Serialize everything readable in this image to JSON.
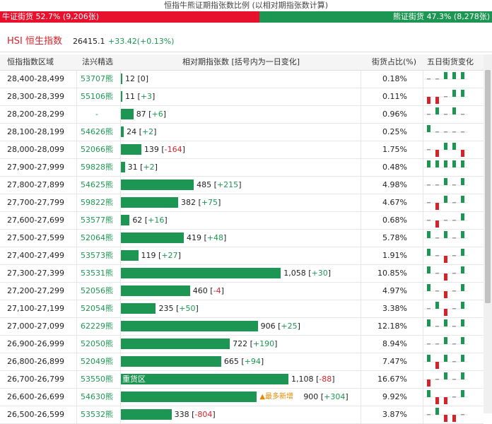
{
  "title": "恒指牛熊证期指张数比例 (以相对期指张数计算)",
  "ratio": {
    "bull_label": "牛证街货 52.7% (9,206张)",
    "bear_label": "熊证街货 47.3% (8,278张)",
    "bull_frac": 0.527,
    "bull_color": "#e8112d",
    "bear_color": "#1e9653"
  },
  "index": {
    "code": "HSI",
    "name": "恒生指数",
    "price": "26415.1",
    "change": "+33.42(+0.13%)"
  },
  "headers": {
    "range": "恒指指数区域",
    "cbbc": "法兴精选",
    "contracts": "相对期指张数 [括号内为一日变化]",
    "share": "街货占比(%)",
    "trend": "五日街货变化"
  },
  "rows": [
    {
      "range": "28,400-28,499",
      "cbbc": "53707熊",
      "count": "12",
      "change": "0",
      "dir": "zero",
      "share": "0.18%",
      "value": 12,
      "spark": [
        0,
        0,
        1,
        1,
        1
      ]
    },
    {
      "range": "28,300-28,399",
      "cbbc": "55106熊",
      "count": "11",
      "change": "+3",
      "dir": "pos",
      "share": "0.11%",
      "value": 11,
      "spark": [
        -1,
        -1,
        0,
        1,
        1
      ]
    },
    {
      "range": "28,200-28,299",
      "cbbc": "-",
      "count": "87",
      "change": "+6",
      "dir": "pos",
      "share": "0.96%",
      "value": 87,
      "spark": [
        0,
        1,
        0,
        1,
        0
      ]
    },
    {
      "range": "28,100-28,199",
      "cbbc": "54626熊",
      "count": "24",
      "change": "+2",
      "dir": "pos",
      "share": "0.25%",
      "value": 24,
      "spark": [
        1,
        0,
        0,
        0,
        0
      ]
    },
    {
      "range": "28,000-28,099",
      "cbbc": "52066熊",
      "count": "139",
      "change": "-164",
      "dir": "neg",
      "share": "1.75%",
      "value": 139,
      "spark": [
        0,
        -1,
        1,
        1,
        -1
      ]
    },
    {
      "range": "27,900-27,999",
      "cbbc": "59828熊",
      "count": "31",
      "change": "+2",
      "dir": "pos",
      "share": "0.48%",
      "value": 31,
      "spark": [
        1,
        1,
        1,
        1,
        1
      ]
    },
    {
      "range": "27,800-27,899",
      "cbbc": "54625熊",
      "count": "485",
      "change": "+215",
      "dir": "pos",
      "share": "4.98%",
      "value": 485,
      "spark": [
        0,
        0,
        1,
        0,
        1
      ]
    },
    {
      "range": "27,700-27,799",
      "cbbc": "59822熊",
      "count": "382",
      "change": "+75",
      "dir": "pos",
      "share": "4.67%",
      "value": 382,
      "spark": [
        0,
        -1,
        1,
        0,
        1
      ]
    },
    {
      "range": "27,600-27,699",
      "cbbc": "53577熊",
      "count": "62",
      "change": "+16",
      "dir": "pos",
      "share": "0.68%",
      "value": 62,
      "spark": [
        0,
        -1,
        0,
        0,
        1
      ]
    },
    {
      "range": "27,500-27,599",
      "cbbc": "52064熊",
      "count": "419",
      "change": "+48",
      "dir": "pos",
      "share": "5.78%",
      "value": 419,
      "spark": [
        1,
        0,
        1,
        0,
        1
      ]
    },
    {
      "range": "27,400-27,499",
      "cbbc": "53573熊",
      "count": "119",
      "change": "+27",
      "dir": "pos",
      "share": "1.91%",
      "value": 119,
      "spark": [
        1,
        0,
        -1,
        0,
        1
      ]
    },
    {
      "range": "27,300-27,399",
      "cbbc": "53531熊",
      "count": "1,058",
      "change": "+30",
      "dir": "pos",
      "share": "10.85%",
      "value": 1058,
      "spark": [
        1,
        0,
        -1,
        0,
        1
      ]
    },
    {
      "range": "27,200-27,299",
      "cbbc": "52056熊",
      "count": "460",
      "change": "-4",
      "dir": "neg",
      "share": "4.97%",
      "value": 460,
      "spark": [
        1,
        0,
        -1,
        0,
        1
      ]
    },
    {
      "range": "27,100-27,199",
      "cbbc": "52054熊",
      "count": "235",
      "change": "+50",
      "dir": "pos",
      "share": "3.38%",
      "value": 235,
      "spark": [
        0,
        1,
        -1,
        0,
        1
      ]
    },
    {
      "range": "27,000-27,099",
      "cbbc": "62229熊",
      "count": "906",
      "change": "+25",
      "dir": "pos",
      "share": "12.18%",
      "value": 906,
      "spark": [
        1,
        0,
        1,
        0,
        1
      ]
    },
    {
      "range": "26,900-26,999",
      "cbbc": "52050熊",
      "count": "722",
      "change": "+190",
      "dir": "pos",
      "share": "8.94%",
      "value": 722,
      "spark": [
        0,
        0,
        1,
        0,
        1
      ]
    },
    {
      "range": "26,800-26,899",
      "cbbc": "52049熊",
      "count": "665",
      "change": "+94",
      "dir": "pos",
      "share": "7.47%",
      "value": 665,
      "spark": [
        1,
        -1,
        1,
        0,
        1
      ]
    },
    {
      "range": "26,700-26,799",
      "cbbc": "53550熊",
      "count": "1,108",
      "change": "-88",
      "dir": "neg",
      "share": "16.67%",
      "value": 1108,
      "spark": [
        -1,
        0,
        1,
        0,
        1
      ],
      "bar_label": "重货区"
    },
    {
      "range": "26,600-26,699",
      "cbbc": "54630熊",
      "count": "900",
      "change": "+304",
      "dir": "pos",
      "share": "9.92%",
      "value": 900,
      "spark": [
        1,
        -1,
        -1,
        0,
        1
      ],
      "hint": "▲最多新增"
    },
    {
      "range": "26,500-26,599",
      "cbbc": "53532熊",
      "count": "338",
      "change": "-804",
      "dir": "neg",
      "share": "3.87%",
      "value": 338,
      "spark": [
        0,
        1,
        -1,
        -1,
        0
      ]
    }
  ]
}
